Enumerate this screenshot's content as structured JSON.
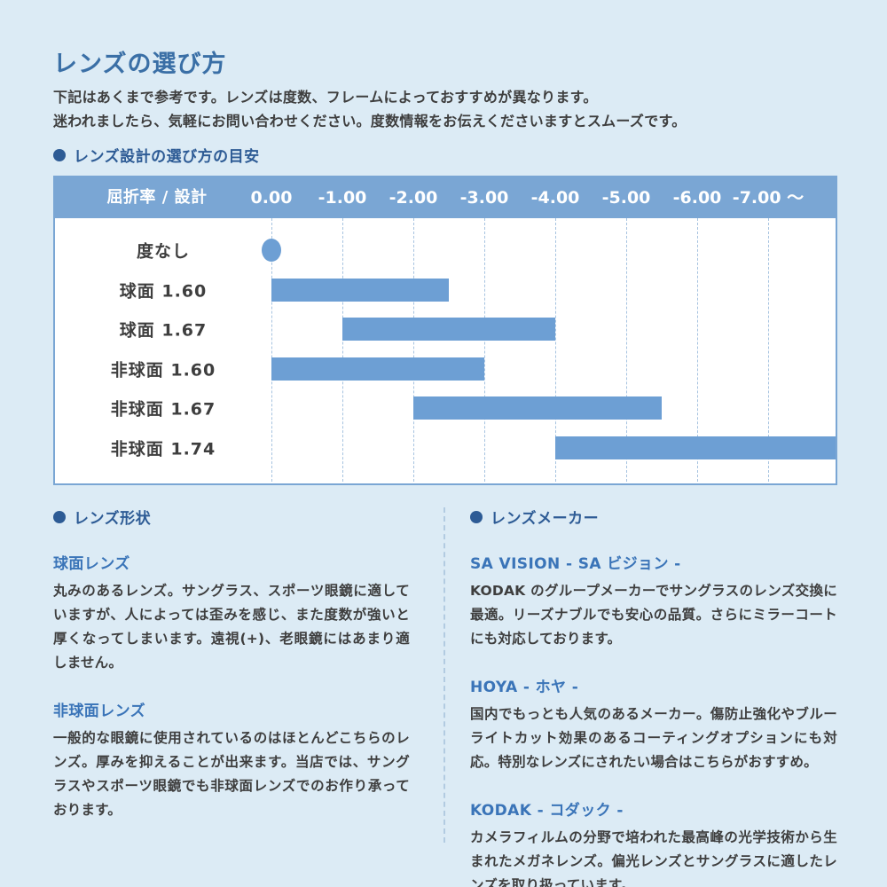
{
  "page": {
    "title": "レンズの選び方",
    "intro_line1": "下記はあくまで参考です。レンズは度数、フレームによっておすすめが異なります。",
    "intro_line2": "迷われましたら、気軽にお問い合わせください。度数情報をお伝えくださいますとスムーズです。"
  },
  "chart_section": {
    "heading": "レンズ設計の選び方の目安"
  },
  "chart_data": {
    "type": "bar",
    "orientation": "horizontal-range",
    "title": "レンズ設計の選び方の目安",
    "header_label": "屈折率 / 設計",
    "x_ticks": [
      "0.00",
      "-1.00",
      "-2.00",
      "-3.00",
      "-4.00",
      "-5.00",
      "-6.00",
      "-7.00 ～"
    ],
    "x_tick_values": [
      0,
      -1,
      -2,
      -3,
      -4,
      -5,
      -6,
      -7
    ],
    "x_axis_note": "diopter (度数), 0.00 to -7.00 and beyond",
    "grid": "dashed-vertical",
    "rows": [
      {
        "label": "度なし",
        "type": "dot",
        "value": 0
      },
      {
        "label": "球面 1.60",
        "type": "bar",
        "start": 0,
        "end": -2.5
      },
      {
        "label": "球面 1.67",
        "type": "bar",
        "start": -1,
        "end": -4
      },
      {
        "label": "非球面 1.60",
        "type": "bar",
        "start": 0,
        "end": -3
      },
      {
        "label": "非球面 1.67",
        "type": "bar",
        "start": -2,
        "end": -5.5
      },
      {
        "label": "非球面 1.74",
        "type": "bar",
        "start": -4,
        "end": -8,
        "extends_beyond_axis": true
      }
    ]
  },
  "shape_section": {
    "heading": "レンズ形状",
    "items": [
      {
        "heading": "球面レンズ",
        "body": "丸みのあるレンズ。サングラス、スポーツ眼鏡に適していますが、人によっては歪みを感じ、また度数が強いと厚くなってしまいます。遠視(+)、老眼鏡にはあまり適しません。"
      },
      {
        "heading": "非球面レンズ",
        "body": "一般的な眼鏡に使用されているのはほとんどこちらのレンズ。厚みを抑えることが出来ます。当店では、サングラスやスポーツ眼鏡でも非球面レンズでのお作り承っております。"
      }
    ]
  },
  "maker_section": {
    "heading": "レンズメーカー",
    "items": [
      {
        "heading": "SA VISION - SA ビジョン -",
        "body": "KODAK のグループメーカーでサングラスのレンズ交換に最適。リーズナブルでも安心の品質。さらにミラーコートにも対応しております。"
      },
      {
        "heading": "HOYA - ホヤ -",
        "body": "国内でもっとも人気のあるメーカー。傷防止強化やブルーライトカット効果のあるコーティングオプションにも対応。特別なレンズにされたい場合はこちらがおすすめ。"
      },
      {
        "heading": "KODAK - コダック -",
        "body": "カメラフィルムの分野で培われた最高峰の光学技術から生まれたメガネレンズ。偏光レンズとサングラスに適したレンズを取り扱っています。"
      }
    ]
  },
  "colors": {
    "bg": "#dcebf5",
    "panel-blue": "#7aa6d4",
    "bar-blue": "#6d9fd4",
    "grid-blue": "#a6c3e0",
    "title-blue": "#3a6fa6",
    "heading-blue": "#2d5b95",
    "sub-blue": "#3a74b8",
    "text": "#3e3e3e",
    "divider-blue": "#b2cbe1",
    "chart-bg": "#ffffff"
  }
}
